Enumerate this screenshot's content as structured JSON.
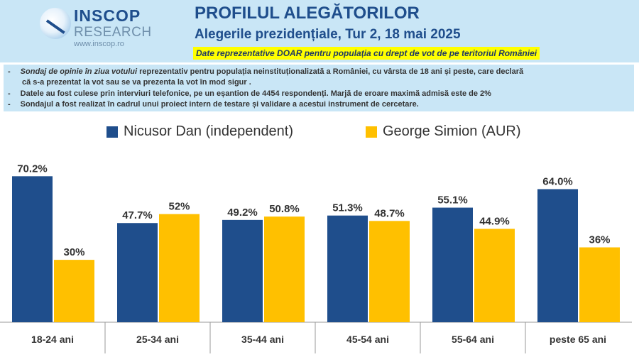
{
  "header": {
    "logo": {
      "name": "INSCOP",
      "sub": "RESEARCH",
      "web": "www.inscop.ro"
    },
    "title": "PROFILUL ALEGĂTORILOR",
    "subtitle": "Alegerile prezidențiale, Tur 2, 18 mai 2025",
    "disclaimer": "Date reprezentative DOAR pentru populația cu drept de vot de pe teritoriul României"
  },
  "notes": [
    {
      "bullet": "-",
      "italic": "Sondaj de opinie în ziua votului",
      "text": " reprezentativ pentru populația neinstituționalizată a României, cu vârsta de 18 ani și peste, care declară"
    },
    {
      "bullet": "",
      "italic": "",
      "text": "că s-a prezentat la vot sau se va prezenta la vot în mod sigur ."
    },
    {
      "bullet": "-",
      "italic": "",
      "text": "Datele au fost culese prin interviuri telefonice, pe un eșantion de 4454 respondenți. Marjă de eroare maximă admisă este de 2%"
    },
    {
      "bullet": "-",
      "italic": "",
      "text": "Sondajul a fost realizat în cadrul unui proiect intern de testare și validare a acestui instrument de cercetare."
    }
  ],
  "chart_data": {
    "type": "bar",
    "categories": [
      "18-24 ani",
      "25-34 ani",
      "35-44 ani",
      "45-54 ani",
      "55-64 ani",
      "peste 65 ani"
    ],
    "series": [
      {
        "name": "Nicusor Dan (independent)",
        "color": "#1f4e8c",
        "values": [
          70.2,
          47.7,
          49.2,
          51.3,
          55.1,
          64.0
        ],
        "labels": [
          "70.2%",
          "47.7%",
          "49.2%",
          "51.3%",
          "55.1%",
          "64.0%"
        ]
      },
      {
        "name": "George Simion (AUR)",
        "color": "#ffc000",
        "values": [
          30,
          52,
          50.8,
          48.7,
          44.9,
          36
        ],
        "labels": [
          "30%",
          "52%",
          "50.8%",
          "48.7%",
          "44.9%",
          "36%"
        ]
      }
    ],
    "ylim": [
      0,
      80
    ],
    "grid": false,
    "legend": "top"
  }
}
